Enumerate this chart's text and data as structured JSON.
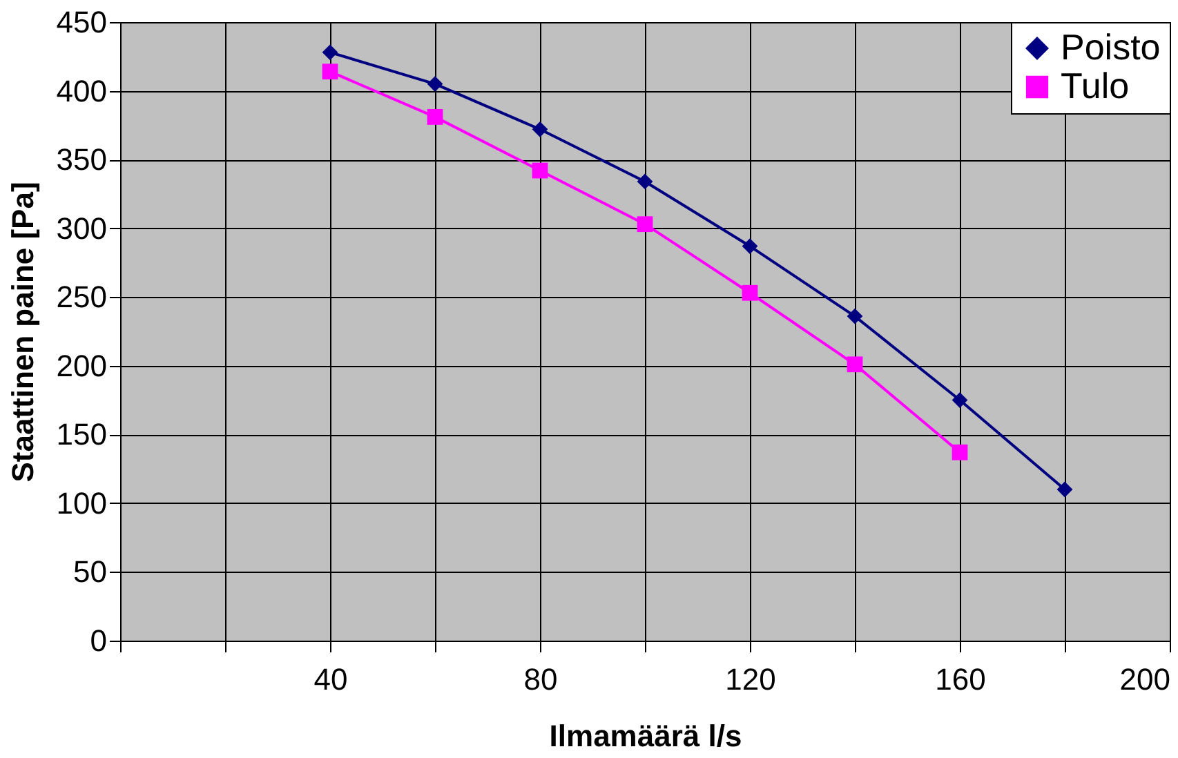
{
  "chart_data": {
    "type": "line",
    "xlabel": "Ilmamäärä l/s",
    "ylabel": "Staattinen paine [Pa]",
    "x": [
      40,
      60,
      80,
      100,
      120,
      140,
      160,
      180
    ],
    "series": [
      {
        "name": "Poisto",
        "color": "#000080",
        "marker": "diamond",
        "values": [
          428,
          405,
          372,
          334,
          287,
          236,
          175,
          110
        ]
      },
      {
        "name": "Tulo",
        "color": "#ff00ff",
        "marker": "square",
        "values": [
          414,
          381,
          342,
          303,
          253,
          201,
          137,
          null
        ]
      }
    ],
    "xlim": [
      0,
      200
    ],
    "xticks": [
      {
        "value": 0,
        "label": null
      },
      {
        "value": 20,
        "label": null
      },
      40,
      {
        "value": 60,
        "label": null
      },
      80,
      {
        "value": 100,
        "label": null
      },
      120,
      {
        "value": 140,
        "label": null
      },
      160,
      {
        "value": 180,
        "label": null
      },
      200
    ],
    "ylim": [
      0,
      450
    ],
    "yticks": [
      0,
      50,
      100,
      150,
      200,
      250,
      300,
      350,
      400,
      450
    ],
    "grid": true,
    "legend": "top right",
    "line_style": "solid"
  }
}
